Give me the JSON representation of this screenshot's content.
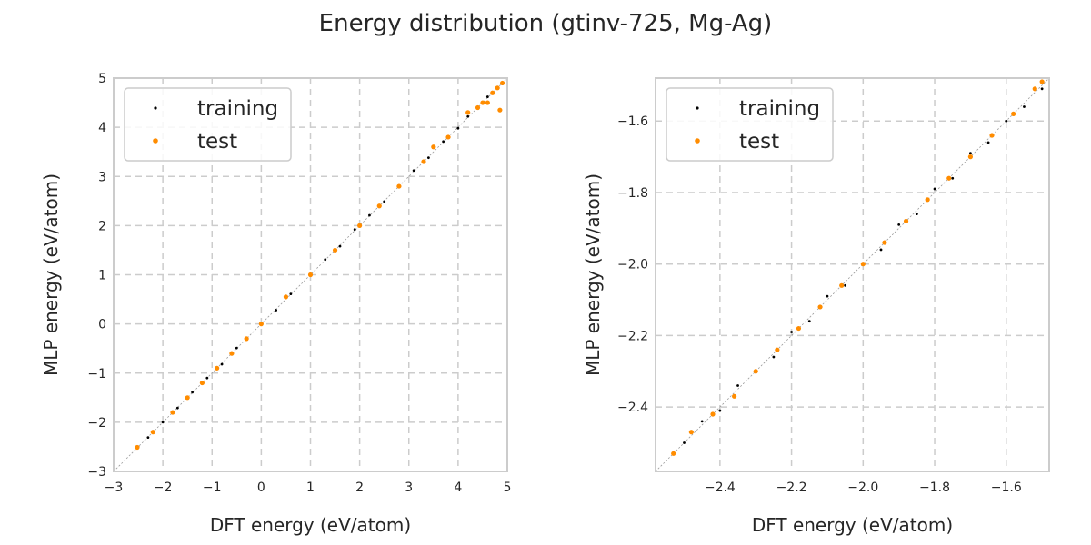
{
  "figure": {
    "title": "Energy distribution (gtinv-725, Mg-Ag)"
  },
  "colors": {
    "training": "#000000",
    "test": "#ff8c00",
    "grid": "#cccccc",
    "spine": "#cccccc",
    "diag": "#999999"
  },
  "chart_data": [
    {
      "type": "scatter",
      "xlabel": "DFT energy (eV/atom)",
      "ylabel": "MLP energy (eV/atom)",
      "xlim": [
        -3,
        5
      ],
      "ylim": [
        -3,
        5
      ],
      "xticks": [
        -3,
        -2,
        -1,
        0,
        1,
        2,
        3,
        4,
        5
      ],
      "yticks": [
        -3,
        -2,
        -1,
        0,
        1,
        2,
        3,
        4,
        5
      ],
      "xtick_labels": [
        "−3",
        "−2",
        "−1",
        "0",
        "1",
        "2",
        "3",
        "4",
        "5"
      ],
      "ytick_labels": [
        "−3",
        "−2",
        "−1",
        "0",
        "1",
        "2",
        "3",
        "4",
        "5"
      ],
      "grid": true,
      "legend": "upper-left",
      "series": [
        {
          "name": "training",
          "points": [
            [
              -2.5,
              -2.5
            ],
            [
              -2.3,
              -2.31
            ],
            [
              -2.0,
              -2.0
            ],
            [
              -1.7,
              -1.71
            ],
            [
              -1.4,
              -1.39
            ],
            [
              -1.1,
              -1.1
            ],
            [
              -0.8,
              -0.82
            ],
            [
              -0.5,
              -0.49
            ],
            [
              -0.3,
              -0.3
            ],
            [
              0.0,
              0.01
            ],
            [
              0.3,
              0.28
            ],
            [
              0.6,
              0.61
            ],
            [
              1.0,
              1.0
            ],
            [
              1.3,
              1.31
            ],
            [
              1.6,
              1.58
            ],
            [
              1.9,
              1.92
            ],
            [
              2.2,
              2.21
            ],
            [
              2.5,
              2.49
            ],
            [
              2.8,
              2.78
            ],
            [
              3.1,
              3.12
            ],
            [
              3.4,
              3.38
            ],
            [
              3.7,
              3.71
            ],
            [
              4.0,
              3.98
            ],
            [
              4.2,
              4.22
            ],
            [
              4.4,
              4.38
            ],
            [
              4.6,
              4.62
            ],
            [
              4.8,
              4.79
            ],
            [
              4.9,
              4.88
            ]
          ]
        },
        {
          "name": "test",
          "points": [
            [
              -2.52,
              -2.51
            ],
            [
              -2.2,
              -2.2
            ],
            [
              -1.8,
              -1.8
            ],
            [
              -1.5,
              -1.5
            ],
            [
              -1.2,
              -1.2
            ],
            [
              -0.9,
              -0.9
            ],
            [
              -0.6,
              -0.6
            ],
            [
              -0.3,
              -0.3
            ],
            [
              0.0,
              0.0
            ],
            [
              0.5,
              0.55
            ],
            [
              1.0,
              1.0
            ],
            [
              1.5,
              1.5
            ],
            [
              2.0,
              2.0
            ],
            [
              2.4,
              2.4
            ],
            [
              2.8,
              2.8
            ],
            [
              3.3,
              3.3
            ],
            [
              3.5,
              3.6
            ],
            [
              3.8,
              3.8
            ],
            [
              4.2,
              4.3
            ],
            [
              4.4,
              4.4
            ],
            [
              4.5,
              4.5
            ],
            [
              4.6,
              4.5
            ],
            [
              4.7,
              4.7
            ],
            [
              4.8,
              4.8
            ],
            [
              4.85,
              4.35
            ],
            [
              4.9,
              4.9
            ]
          ]
        }
      ]
    },
    {
      "type": "scatter",
      "xlabel": "DFT energy (eV/atom)",
      "ylabel": "MLP energy (eV/atom)",
      "xlim": [
        -2.58,
        -1.48
      ],
      "ylim": [
        -2.58,
        -1.48
      ],
      "xticks": [
        -2.4,
        -2.2,
        -2.0,
        -1.8,
        -1.6
      ],
      "yticks": [
        -2.4,
        -2.2,
        -2.0,
        -1.8,
        -1.6
      ],
      "xtick_labels": [
        "−2.4",
        "−2.2",
        "−2.0",
        "−1.8",
        "−1.6"
      ],
      "ytick_labels": [
        "−2.4",
        "−2.2",
        "−2.0",
        "−1.8",
        "−1.6"
      ],
      "grid": true,
      "legend": "upper-left",
      "series": [
        {
          "name": "training",
          "points": [
            [
              -2.5,
              -2.5
            ],
            [
              -2.45,
              -2.44
            ],
            [
              -2.4,
              -2.41
            ],
            [
              -2.35,
              -2.34
            ],
            [
              -2.3,
              -2.3
            ],
            [
              -2.25,
              -2.26
            ],
            [
              -2.2,
              -2.19
            ],
            [
              -2.15,
              -2.16
            ],
            [
              -2.1,
              -2.09
            ],
            [
              -2.05,
              -2.06
            ],
            [
              -2.0,
              -2.0
            ],
            [
              -1.95,
              -1.96
            ],
            [
              -1.9,
              -1.89
            ],
            [
              -1.85,
              -1.86
            ],
            [
              -1.8,
              -1.79
            ],
            [
              -1.75,
              -1.76
            ],
            [
              -1.7,
              -1.69
            ],
            [
              -1.65,
              -1.66
            ],
            [
              -1.6,
              -1.6
            ],
            [
              -1.55,
              -1.56
            ],
            [
              -1.5,
              -1.51
            ]
          ]
        },
        {
          "name": "test",
          "points": [
            [
              -2.53,
              -2.53
            ],
            [
              -2.48,
              -2.47
            ],
            [
              -2.42,
              -2.42
            ],
            [
              -2.36,
              -2.37
            ],
            [
              -2.3,
              -2.3
            ],
            [
              -2.24,
              -2.24
            ],
            [
              -2.18,
              -2.18
            ],
            [
              -2.12,
              -2.12
            ],
            [
              -2.06,
              -2.06
            ],
            [
              -2.0,
              -2.0
            ],
            [
              -1.94,
              -1.94
            ],
            [
              -1.88,
              -1.88
            ],
            [
              -1.82,
              -1.82
            ],
            [
              -1.76,
              -1.76
            ],
            [
              -1.7,
              -1.7
            ],
            [
              -1.64,
              -1.64
            ],
            [
              -1.58,
              -1.58
            ],
            [
              -1.52,
              -1.51
            ],
            [
              -1.5,
              -1.49
            ]
          ]
        }
      ]
    }
  ]
}
